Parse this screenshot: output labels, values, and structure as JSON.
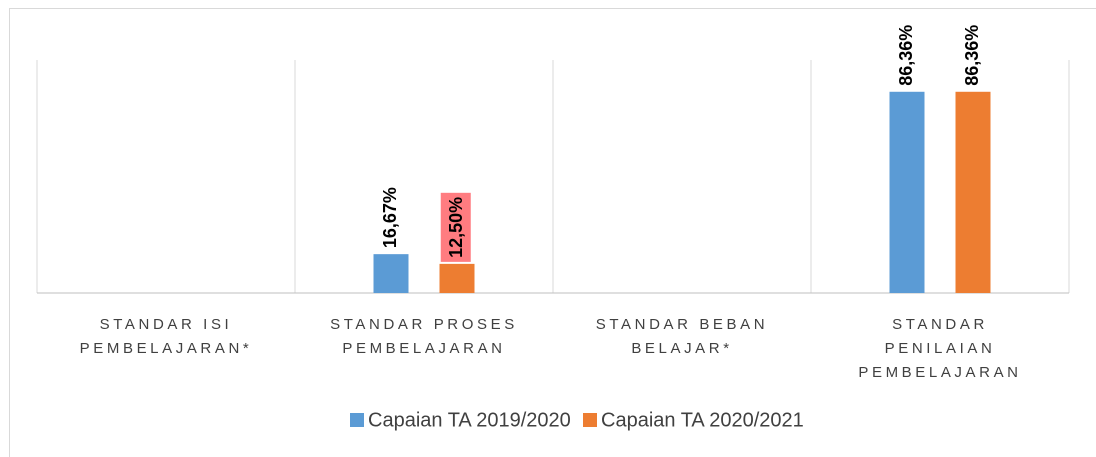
{
  "chart_data": {
    "type": "bar",
    "categories": [
      "STANDAR ISI PEMBELAJARAN*",
      "STANDAR PROSES PEMBELAJARAN",
      "STANDAR BEBAN BELAJAR*",
      "STANDAR PENILAIAN PEMBELAJARAN"
    ],
    "series": [
      {
        "name": "Capaian TA 2019/2020",
        "color": "#5b9bd5",
        "values": [
          null,
          16.67,
          null,
          86.36
        ],
        "value_labels": [
          null,
          "16,67%",
          null,
          "86,36%"
        ]
      },
      {
        "name": "Capaian TA 2020/2021",
        "color": "#ed7d31",
        "values": [
          null,
          12.5,
          null,
          86.36
        ],
        "value_labels": [
          null,
          "12,50%",
          null,
          "86,36%"
        ]
      }
    ],
    "ylim": [
      0,
      100
    ],
    "legend": "bottom"
  }
}
